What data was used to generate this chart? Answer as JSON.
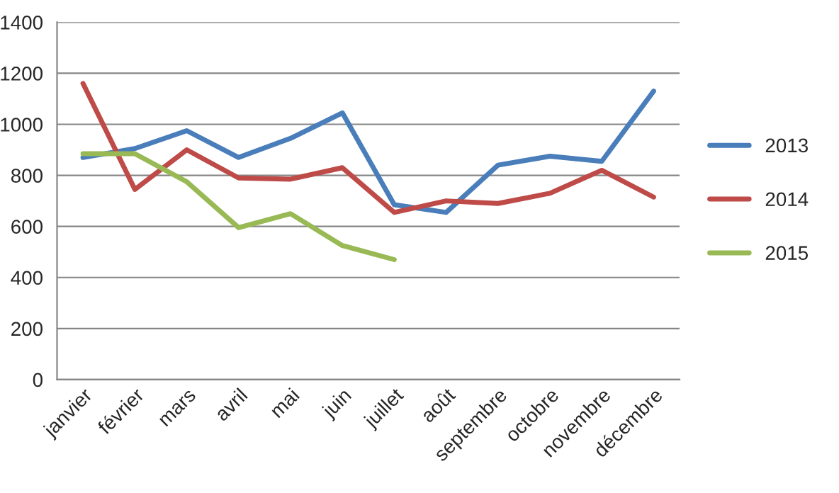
{
  "chart_data": {
    "type": "line",
    "categories": [
      "janvier",
      "février",
      "mars",
      "avril",
      "mai",
      "juin",
      "juillet",
      "août",
      "septembre",
      "octobre",
      "novembre",
      "décembre"
    ],
    "series": [
      {
        "name": "2013",
        "color": "#4a7ebb",
        "values": [
          870,
          905,
          975,
          870,
          945,
          1045,
          685,
          655,
          840,
          875,
          855,
          1130
        ]
      },
      {
        "name": "2014",
        "color": "#be4b48",
        "values": [
          1160,
          745,
          900,
          790,
          785,
          830,
          655,
          700,
          690,
          730,
          820,
          715
        ]
      },
      {
        "name": "2015",
        "color": "#98b954",
        "values": [
          885,
          885,
          775,
          595,
          650,
          525,
          470,
          null,
          null,
          null,
          null,
          null
        ]
      }
    ],
    "ylim": [
      0,
      1400
    ],
    "yticks": [
      0,
      200,
      400,
      600,
      800,
      1000,
      1200,
      1400
    ],
    "grid": "y",
    "legend": "right",
    "marker": "none",
    "line_style": "solid"
  }
}
